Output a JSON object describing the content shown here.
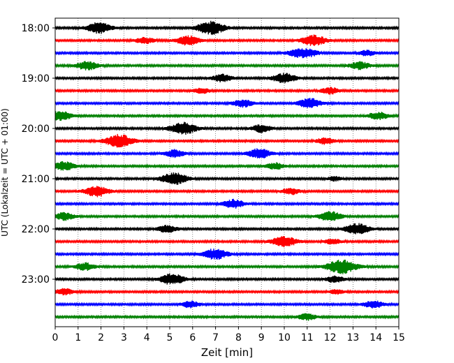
{
  "chart_data": {
    "type": "line",
    "title": "",
    "xlabel": "Zeit  [min]",
    "ylabel": "UTC (Lokalzeit = UTC + 01:00)",
    "xlim": [
      0,
      15
    ],
    "x_ticks": [
      "0",
      "1",
      "2",
      "3",
      "4",
      "5",
      "6",
      "7",
      "8",
      "9",
      "10",
      "11",
      "12",
      "13",
      "14",
      "15"
    ],
    "y_tick_labels": [
      "18:00",
      "19:00",
      "20:00",
      "21:00",
      "22:00",
      "23:00"
    ],
    "grid": "vertical dotted",
    "trace_interval_min": 15,
    "trace_colors": [
      "#000000",
      "#ff0000",
      "#0000ff",
      "#008000"
    ],
    "series": [
      {
        "start": "18:00",
        "events": [
          [
            1.9,
            1.0
          ],
          [
            6.8,
            1.2
          ]
        ]
      },
      {
        "start": "18:15",
        "events": [
          [
            3.9,
            0.6
          ],
          [
            5.8,
            0.9
          ],
          [
            11.3,
            1.0
          ]
        ]
      },
      {
        "start": "18:30",
        "events": [
          [
            10.6,
            0.8
          ],
          [
            11.2,
            0.5
          ],
          [
            13.6,
            0.5
          ]
        ]
      },
      {
        "start": "18:45",
        "events": [
          [
            1.4,
            0.8
          ],
          [
            13.3,
            0.7
          ]
        ]
      },
      {
        "start": "19:00",
        "events": [
          [
            7.3,
            0.7
          ],
          [
            10.0,
            0.9
          ]
        ]
      },
      {
        "start": "19:15",
        "events": [
          [
            6.4,
            0.5
          ],
          [
            12.0,
            0.6
          ]
        ]
      },
      {
        "start": "19:30",
        "events": [
          [
            8.2,
            0.7
          ],
          [
            11.1,
            0.9
          ]
        ]
      },
      {
        "start": "19:45",
        "events": [
          [
            0.2,
            0.9
          ],
          [
            14.1,
            0.7
          ]
        ]
      },
      {
        "start": "20:00",
        "events": [
          [
            5.6,
            1.1
          ],
          [
            9.0,
            0.7
          ]
        ]
      },
      {
        "start": "20:15",
        "events": [
          [
            2.8,
            1.2
          ],
          [
            11.8,
            0.6
          ]
        ]
      },
      {
        "start": "20:30",
        "events": [
          [
            5.2,
            0.7
          ],
          [
            8.9,
            0.9
          ]
        ]
      },
      {
        "start": "20:45",
        "events": [
          [
            0.4,
            0.8
          ],
          [
            9.6,
            0.6
          ]
        ]
      },
      {
        "start": "21:00",
        "events": [
          [
            5.2,
            1.1
          ],
          [
            12.2,
            0.4
          ]
        ]
      },
      {
        "start": "21:15",
        "events": [
          [
            1.8,
            1.0
          ],
          [
            10.3,
            0.6
          ]
        ]
      },
      {
        "start": "21:30",
        "events": [
          [
            7.8,
            0.8
          ]
        ]
      },
      {
        "start": "21:45",
        "events": [
          [
            0.4,
            0.7
          ],
          [
            12.0,
            0.9
          ]
        ]
      },
      {
        "start": "22:00",
        "events": [
          [
            4.9,
            0.7
          ],
          [
            13.2,
            1.0
          ]
        ]
      },
      {
        "start": "22:15",
        "events": [
          [
            10.0,
            1.0
          ],
          [
            12.1,
            0.5
          ]
        ]
      },
      {
        "start": "22:30",
        "events": [
          [
            7.0,
            1.0
          ]
        ]
      },
      {
        "start": "22:45",
        "events": [
          [
            1.3,
            0.7
          ],
          [
            12.5,
            1.3
          ]
        ]
      },
      {
        "start": "23:00",
        "events": [
          [
            5.1,
            1.0
          ],
          [
            12.2,
            0.6
          ]
        ]
      },
      {
        "start": "23:15",
        "events": [
          [
            0.4,
            0.6
          ],
          [
            12.3,
            0.4
          ]
        ]
      },
      {
        "start": "23:30",
        "events": [
          [
            5.9,
            0.6
          ],
          [
            13.9,
            0.7
          ]
        ]
      },
      {
        "start": "23:45",
        "events": [
          [
            11.0,
            0.6
          ]
        ]
      }
    ]
  }
}
